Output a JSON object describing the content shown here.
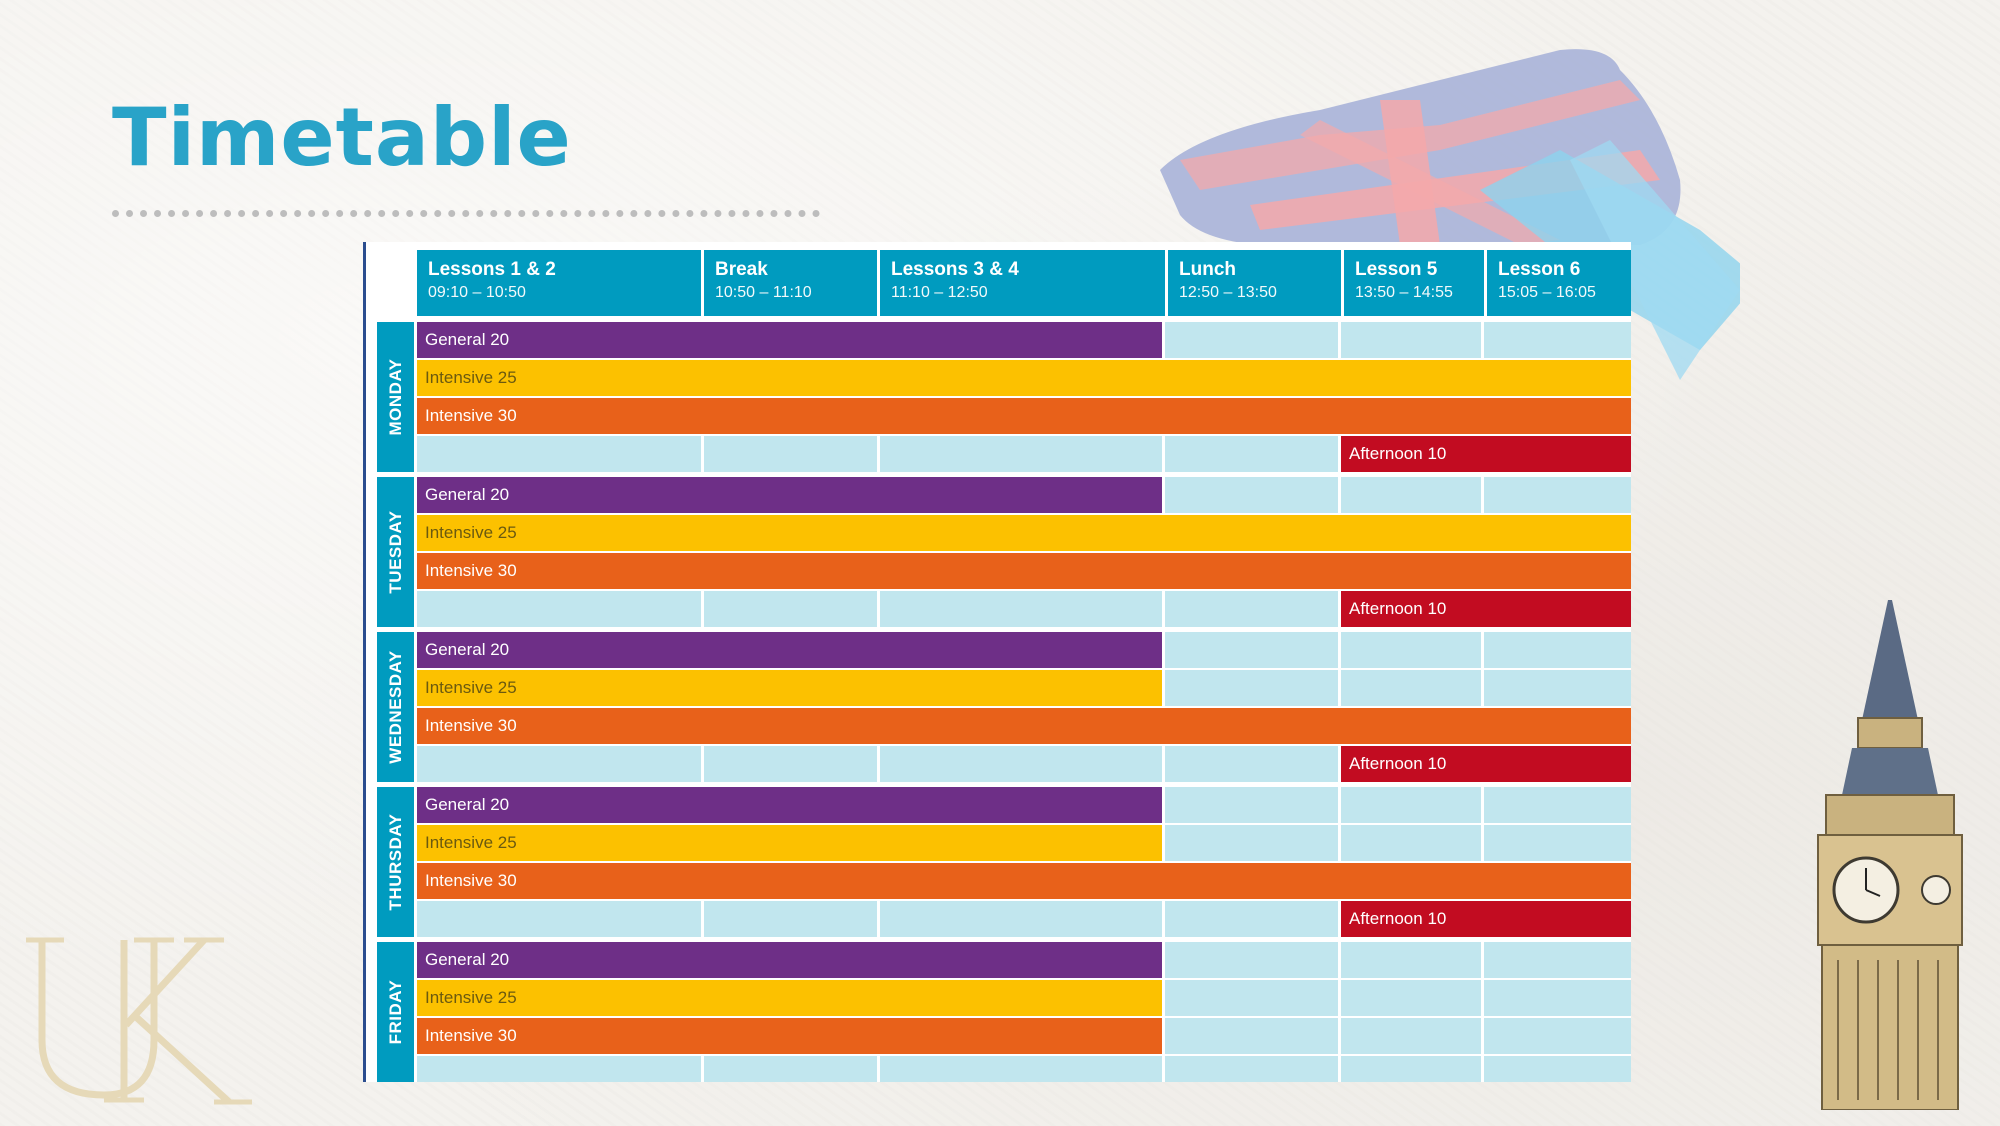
{
  "title": "Timetable",
  "decor": {
    "monogram": "UK"
  },
  "timetable": {
    "headers": [
      {
        "name": "Lessons 1 & 2",
        "time": "09:10 – 10:50"
      },
      {
        "name": "Break",
        "time": "10:50 – 11:10"
      },
      {
        "name": "Lessons 3 & 4",
        "time": "11:10 – 12:50"
      },
      {
        "name": "Lunch",
        "time": "12:50 – 13:50"
      },
      {
        "name": "Lesson 5",
        "time": "13:50 – 14:55"
      },
      {
        "name": "Lesson 6",
        "time": "15:05 – 16:05"
      }
    ],
    "days": [
      {
        "name": "MONDAY",
        "general": "General 20",
        "int25": "Intensive 25",
        "int30": "Intensive 30",
        "afternoon": "Afternoon 10"
      },
      {
        "name": "TUESDAY",
        "general": "General 20",
        "int25": "Intensive 25",
        "int30": "Intensive 30",
        "afternoon": "Afternoon 10"
      },
      {
        "name": "WEDNESDAY",
        "general": "General 20",
        "int25": "Intensive 25",
        "int30": "Intensive 30",
        "afternoon": "Afternoon 10"
      },
      {
        "name": "THURSDAY",
        "general": "General 20",
        "int25": "Intensive 25",
        "int30": "Intensive 30",
        "afternoon": "Afternoon 10"
      },
      {
        "name": "FRIDAY",
        "general": "General 20",
        "int25": "Intensive 25",
        "int30": "Intensive 30"
      }
    ],
    "colors": {
      "header": "#009bbf",
      "empty": "#c1e6ee",
      "general": "#6e2f87",
      "intensive25": "#fcc100",
      "intensive30": "#e8611a",
      "afternoon": "#c20c21"
    }
  }
}
